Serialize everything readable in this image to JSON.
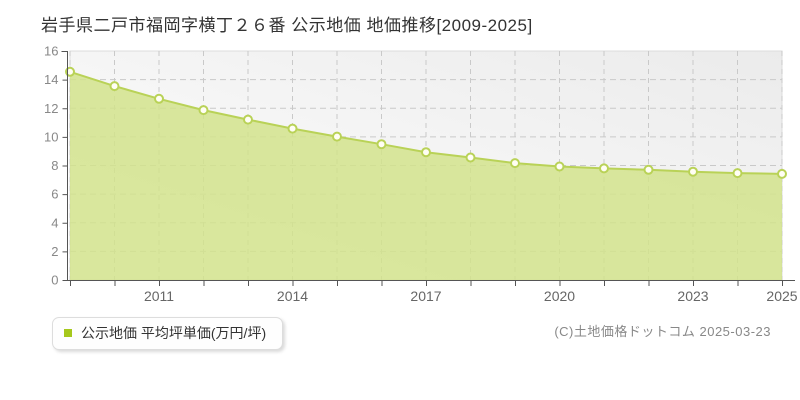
{
  "page": {
    "title": "岩手県二戸市福岡字横丁２６番 公示地価 地価推移[2009-2025]"
  },
  "chart_data": {
    "type": "area",
    "title": "岩手県二戸市福岡字横丁２６番 公示地価 地価推移[2009-2025]",
    "x": [
      2009,
      2010,
      2011,
      2012,
      2013,
      2014,
      2015,
      2016,
      2017,
      2018,
      2019,
      2020,
      2021,
      2022,
      2023,
      2024,
      2025
    ],
    "series": [
      {
        "name": "公示地価 平均坪単価(万円/坪)",
        "values": [
          14.55,
          13.55,
          12.66,
          11.87,
          11.21,
          10.58,
          10.02,
          9.49,
          8.93,
          8.56,
          8.17,
          7.93,
          7.8,
          7.7,
          7.57,
          7.47,
          7.41
        ]
      }
    ],
    "ylim": [
      0,
      16
    ],
    "yticks": [
      0,
      2,
      4,
      6,
      8,
      10,
      12,
      14,
      16
    ],
    "xtick_labels": [
      "2011",
      "2014",
      "2017",
      "2020",
      "2023",
      "2025"
    ],
    "grid": true,
    "legend_position": "bottom-left",
    "colors": {
      "line": "#b9d257",
      "area_fill": "#d2e38c",
      "marker_fill": "#fffef4",
      "legend_swatch": "#a6c81c",
      "grid": "#c9c9c9",
      "axis": "#555555",
      "y_tick_label": "#888888",
      "x_tick_label": "#666666",
      "plot_border": "#dcdcdc",
      "plot_bg_from": "#ffffff",
      "plot_bg_to": "#ebebeb"
    }
  },
  "legend": {
    "label": "公示地価 平均坪単価(万円/坪)"
  },
  "copyright": {
    "text": "(C)土地価格ドットコム 2025-03-23"
  }
}
